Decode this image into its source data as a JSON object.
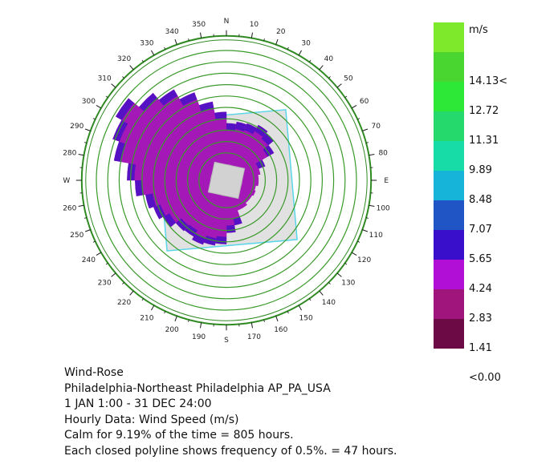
{
  "chart_data": {
    "type": "wind-rose",
    "direction_labels": [
      {
        "deg": 0,
        "text": "N"
      },
      {
        "deg": 10,
        "text": "10"
      },
      {
        "deg": 20,
        "text": "20"
      },
      {
        "deg": 30,
        "text": "30"
      },
      {
        "deg": 40,
        "text": "40"
      },
      {
        "deg": 50,
        "text": "50"
      },
      {
        "deg": 60,
        "text": "60"
      },
      {
        "deg": 70,
        "text": "70"
      },
      {
        "deg": 80,
        "text": "80"
      },
      {
        "deg": 90,
        "text": "E"
      },
      {
        "deg": 100,
        "text": "100"
      },
      {
        "deg": 110,
        "text": "110"
      },
      {
        "deg": 120,
        "text": "120"
      },
      {
        "deg": 130,
        "text": "130"
      },
      {
        "deg": 140,
        "text": "140"
      },
      {
        "deg": 150,
        "text": "150"
      },
      {
        "deg": 160,
        "text": "160"
      },
      {
        "deg": 170,
        "text": "170"
      },
      {
        "deg": 180,
        "text": "S"
      },
      {
        "deg": 190,
        "text": "190"
      },
      {
        "deg": 200,
        "text": "200"
      },
      {
        "deg": 210,
        "text": "210"
      },
      {
        "deg": 220,
        "text": "220"
      },
      {
        "deg": 230,
        "text": "230"
      },
      {
        "deg": 240,
        "text": "240"
      },
      {
        "deg": 250,
        "text": "250"
      },
      {
        "deg": 260,
        "text": "260"
      },
      {
        "deg": 270,
        "text": "W"
      },
      {
        "deg": 280,
        "text": "280"
      },
      {
        "deg": 290,
        "text": "290"
      },
      {
        "deg": 300,
        "text": "300"
      },
      {
        "deg": 310,
        "text": "310"
      },
      {
        "deg": 320,
        "text": "320"
      },
      {
        "deg": 330,
        "text": "330"
      },
      {
        "deg": 340,
        "text": "340"
      },
      {
        "deg": 350,
        "text": "350"
      }
    ],
    "frequency_ring_count": 10,
    "frequency_ring_step_percent": 0.5,
    "sectors": [
      {
        "from": 270,
        "to": 280,
        "frequency_rings": 7.3
      },
      {
        "from": 280,
        "to": 290,
        "frequency_rings": 8.6
      },
      {
        "from": 290,
        "to": 300,
        "frequency_rings": 9.2
      },
      {
        "from": 300,
        "to": 310,
        "frequency_rings": 9.8
      },
      {
        "from": 310,
        "to": 320,
        "frequency_rings": 8.6
      },
      {
        "from": 320,
        "to": 330,
        "frequency_rings": 7.8
      },
      {
        "from": 330,
        "to": 340,
        "frequency_rings": 6.8
      },
      {
        "from": 340,
        "to": 350,
        "frequency_rings": 5.6
      },
      {
        "from": 350,
        "to": 360,
        "frequency_rings": 4.6
      },
      {
        "from": 0,
        "to": 10,
        "frequency_rings": 3.6
      },
      {
        "from": 10,
        "to": 20,
        "frequency_rings": 3.8
      },
      {
        "from": 20,
        "to": 30,
        "frequency_rings": 3.9
      },
      {
        "from": 30,
        "to": 40,
        "frequency_rings": 4.2
      },
      {
        "from": 40,
        "to": 50,
        "frequency_rings": 4.0
      },
      {
        "from": 50,
        "to": 60,
        "frequency_rings": 3.4
      },
      {
        "from": 60,
        "to": 70,
        "frequency_rings": 2.2
      },
      {
        "from": 70,
        "to": 80,
        "frequency_rings": 1.6
      },
      {
        "from": 80,
        "to": 90,
        "frequency_rings": 1.4
      },
      {
        "from": 90,
        "to": 100,
        "frequency_rings": 1.4
      },
      {
        "from": 100,
        "to": 110,
        "frequency_rings": 1.2
      },
      {
        "from": 110,
        "to": 120,
        "frequency_rings": 1.3
      },
      {
        "from": 120,
        "to": 130,
        "frequency_rings": 1.2
      },
      {
        "from": 130,
        "to": 140,
        "frequency_rings": 1.2
      },
      {
        "from": 140,
        "to": 150,
        "frequency_rings": 1.4
      },
      {
        "from": 150,
        "to": 160,
        "frequency_rings": 1.4
      },
      {
        "from": 160,
        "to": 170,
        "frequency_rings": 2.6
      },
      {
        "from": 170,
        "to": 180,
        "frequency_rings": 3.2
      },
      {
        "from": 180,
        "to": 190,
        "frequency_rings": 4.2
      },
      {
        "from": 190,
        "to": 200,
        "frequency_rings": 4.4
      },
      {
        "from": 200,
        "to": 210,
        "frequency_rings": 4.6
      },
      {
        "from": 210,
        "to": 220,
        "frequency_rings": 4.3
      },
      {
        "from": 220,
        "to": 230,
        "frequency_rings": 4.4
      },
      {
        "from": 230,
        "to": 240,
        "frequency_rings": 5.0
      },
      {
        "from": 240,
        "to": 250,
        "frequency_rings": 5.4
      },
      {
        "from": 250,
        "to": 260,
        "frequency_rings": 5.8
      },
      {
        "from": 260,
        "to": 270,
        "frequency_rings": 6.6
      }
    ],
    "colors": {
      "ring": "#3a9a2a",
      "ring_outer": "#2f8a22",
      "sector_fill": "#a318b6",
      "sector_edge": "#3b10c8",
      "calm_square": "#d2d2d2",
      "overlay_fill": "#dcdcdc",
      "overlay_edge": "#5bd6e8"
    }
  },
  "legend": {
    "unit": "m/s",
    "bins": [
      {
        "label": "",
        "color": "#7ee82a"
      },
      {
        "label": "14.13<",
        "color": "#4ad630"
      },
      {
        "label": "12.72",
        "color": "#2ee838"
      },
      {
        "label": "11.31",
        "color": "#26d96c"
      },
      {
        "label": "9.89",
        "color": "#18dca8"
      },
      {
        "label": "8.48",
        "color": "#16b4d8"
      },
      {
        "label": "7.07",
        "color": "#1f55c4"
      },
      {
        "label": "5.65",
        "color": "#3a0fcb"
      },
      {
        "label": "4.24",
        "color": "#b20fd6"
      },
      {
        "label": "2.83",
        "color": "#a0157c"
      },
      {
        "label": "1.41",
        "color": "#6b0a44"
      },
      {
        "label": "<0.00",
        "color": ""
      }
    ]
  },
  "caption": {
    "title": "Wind-Rose",
    "location": "Philadelphia-Northeast Philadelphia AP_PA_USA",
    "period": "1 JAN 1:00 - 31 DEC 24:00",
    "data_type": "Hourly Data: Wind Speed (m/s)",
    "calm": "Calm for 9.19% of the time = 805 hours.",
    "polyline_note": "Each closed polyline shows frequency of 0.5%. = 47 hours."
  }
}
